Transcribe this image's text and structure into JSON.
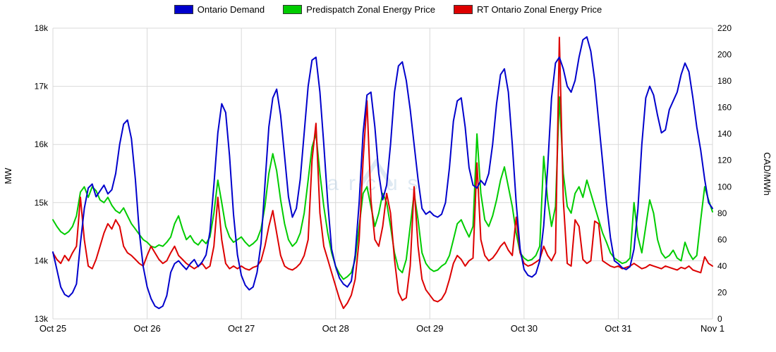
{
  "watermark": {
    "text": "arcus"
  },
  "chart_data": {
    "type": "line",
    "x_labels": [
      "Oct 25",
      "Oct 26",
      "Oct 27",
      "Oct 28",
      "Oct 29",
      "Oct 30",
      "Oct 31",
      "Nov 1"
    ],
    "points_per_day": 24,
    "grid": true,
    "legend_position": "top",
    "left_axis": {
      "label": "MW",
      "min": 13000,
      "max": 18000,
      "ticks": [
        {
          "value": 13000,
          "label": "13k"
        },
        {
          "value": 14000,
          "label": "14k"
        },
        {
          "value": 15000,
          "label": "15k"
        },
        {
          "value": 16000,
          "label": "16k"
        },
        {
          "value": 17000,
          "label": "17k"
        },
        {
          "value": 18000,
          "label": "18k"
        }
      ]
    },
    "right_axis": {
      "label": "CAD/MWh",
      "min": 0,
      "max": 220,
      "ticks": [
        {
          "value": 0,
          "label": "0"
        },
        {
          "value": 20,
          "label": "20"
        },
        {
          "value": 40,
          "label": "40"
        },
        {
          "value": 60,
          "label": "60"
        },
        {
          "value": 80,
          "label": "80"
        },
        {
          "value": 100,
          "label": "100"
        },
        {
          "value": 120,
          "label": "120"
        },
        {
          "value": 140,
          "label": "140"
        },
        {
          "value": 160,
          "label": "160"
        },
        {
          "value": 180,
          "label": "180"
        },
        {
          "value": 200,
          "label": "200"
        },
        {
          "value": 220,
          "label": "220"
        }
      ]
    },
    "series": [
      {
        "name": "Ontario Demand",
        "axis": "left",
        "unit": "MW",
        "color": "#0000cc",
        "values": [
          14150,
          13850,
          13550,
          13420,
          13380,
          13450,
          13600,
          14300,
          14900,
          15250,
          15320,
          15100,
          15200,
          15300,
          15150,
          15220,
          15500,
          16000,
          16350,
          16420,
          16100,
          15400,
          14500,
          13900,
          13550,
          13350,
          13220,
          13180,
          13220,
          13400,
          13800,
          13950,
          14000,
          13920,
          13850,
          13950,
          14020,
          13900,
          13980,
          14100,
          14500,
          15300,
          16200,
          16700,
          16550,
          15800,
          14800,
          14100,
          13750,
          13580,
          13500,
          13550,
          13800,
          14300,
          15300,
          16300,
          16800,
          16950,
          16500,
          15800,
          15100,
          14750,
          14900,
          15400,
          16200,
          17000,
          17450,
          17500,
          16900,
          16000,
          15000,
          14200,
          13900,
          13700,
          13600,
          13550,
          13650,
          14100,
          15000,
          16200,
          16850,
          16900,
          16300,
          15500,
          15050,
          15300,
          16000,
          16900,
          17350,
          17420,
          17100,
          16600,
          16000,
          15400,
          14900,
          14800,
          14850,
          14780,
          14750,
          14800,
          15000,
          15600,
          16400,
          16750,
          16800,
          16300,
          15600,
          15300,
          15250,
          15380,
          15300,
          15500,
          16000,
          16700,
          17200,
          17300,
          16900,
          16000,
          15000,
          14200,
          13850,
          13750,
          13720,
          13780,
          14000,
          14600,
          15600,
          16800,
          17400,
          17500,
          17300,
          17000,
          16900,
          17100,
          17500,
          17800,
          17850,
          17600,
          17100,
          16400,
          15700,
          15000,
          14400,
          14000,
          13950,
          13880,
          13850,
          13900,
          14200,
          14900,
          16000,
          16800,
          17000,
          16850,
          16500,
          16200,
          16250,
          16600,
          16750,
          16900,
          17200,
          17400,
          17250,
          16800,
          16300,
          15900,
          15400,
          15000,
          14900
        ]
      },
      {
        "name": "Predispatch Zonal Energy Price",
        "axis": "right",
        "unit": "CAD/MWh",
        "color": "#00cc00",
        "values": [
          75,
          70,
          66,
          64,
          66,
          70,
          78,
          96,
          100,
          92,
          100,
          97,
          90,
          88,
          92,
          86,
          82,
          80,
          84,
          78,
          72,
          68,
          64,
          60,
          58,
          55,
          54,
          56,
          55,
          58,
          62,
          72,
          78,
          68,
          60,
          63,
          58,
          56,
          60,
          57,
          62,
          80,
          105,
          88,
          70,
          62,
          58,
          60,
          62,
          58,
          55,
          57,
          60,
          68,
          85,
          110,
          125,
          112,
          90,
          72,
          60,
          55,
          58,
          65,
          80,
          105,
          130,
          140,
          110,
          85,
          65,
          50,
          40,
          34,
          30,
          32,
          35,
          45,
          70,
          95,
          100,
          85,
          70,
          80,
          95,
          88,
          70,
          50,
          38,
          35,
          45,
          70,
          95,
          75,
          50,
          42,
          38,
          36,
          37,
          40,
          42,
          48,
          60,
          72,
          75,
          68,
          62,
          70,
          140,
          95,
          75,
          70,
          78,
          90,
          105,
          115,
          100,
          85,
          65,
          50,
          46,
          44,
          45,
          48,
          55,
          123,
          90,
          70,
          85,
          168,
          110,
          85,
          80,
          95,
          100,
          92,
          105,
          95,
          85,
          75,
          65,
          58,
          50,
          46,
          44,
          42,
          43,
          46,
          88,
          62,
          50,
          70,
          90,
          80,
          60,
          50,
          46,
          48,
          52,
          46,
          44,
          58,
          50,
          45,
          48,
          75,
          100,
          90,
          81
        ]
      },
      {
        "name": "RT Ontario Zonal Energy Price",
        "axis": "right",
        "unit": "CAD/MWh",
        "color": "#dd0000",
        "values": [
          50,
          45,
          42,
          48,
          44,
          50,
          55,
          92,
          60,
          40,
          38,
          45,
          55,
          65,
          72,
          68,
          75,
          70,
          55,
          50,
          48,
          45,
          42,
          40,
          48,
          55,
          50,
          45,
          42,
          44,
          50,
          55,
          48,
          45,
          42,
          40,
          38,
          40,
          42,
          38,
          40,
          55,
          92,
          60,
          42,
          38,
          40,
          38,
          40,
          38,
          37,
          39,
          40,
          44,
          55,
          70,
          82,
          65,
          48,
          40,
          38,
          37,
          39,
          42,
          48,
          60,
          120,
          148,
          80,
          55,
          45,
          35,
          25,
          15,
          8,
          12,
          18,
          30,
          60,
          120,
          165,
          90,
          60,
          55,
          70,
          95,
          80,
          45,
          20,
          14,
          16,
          40,
          100,
          55,
          30,
          22,
          18,
          14,
          13,
          15,
          20,
          30,
          42,
          48,
          45,
          40,
          44,
          46,
          118,
          60,
          48,
          44,
          46,
          50,
          55,
          58,
          52,
          48,
          77,
          50,
          42,
          40,
          41,
          43,
          45,
          55,
          48,
          44,
          50,
          213,
          90,
          42,
          40,
          75,
          70,
          45,
          42,
          44,
          74,
          72,
          44,
          42,
          40,
          39,
          40,
          38,
          39,
          40,
          42,
          40,
          38,
          39,
          41,
          40,
          39,
          38,
          40,
          39,
          38,
          37,
          39,
          38,
          40,
          37,
          36,
          35,
          47,
          42,
          40
        ]
      }
    ]
  }
}
